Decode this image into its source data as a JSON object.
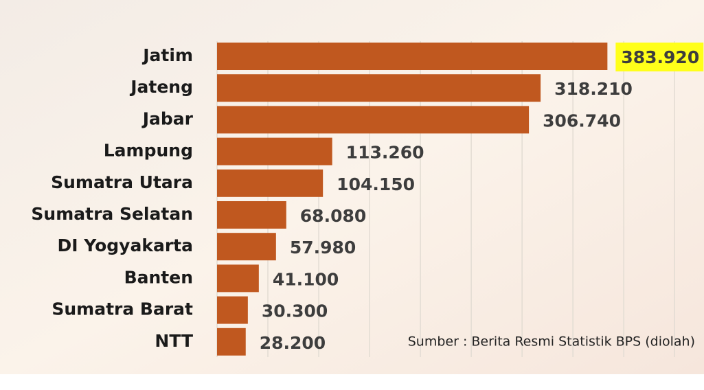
{
  "chart_data": {
    "type": "bar",
    "orientation": "horizontal",
    "categories": [
      "Jatim",
      "Jateng",
      "Jabar",
      "Lampung",
      "Sumatra Utara",
      "Sumatra Selatan",
      "DI Yogyakarta",
      "Banten",
      "Sumatra Barat",
      "NTT"
    ],
    "values": [
      383920,
      318210,
      306740,
      113260,
      104150,
      68080,
      57980,
      41100,
      30300,
      28200
    ],
    "value_labels": [
      "383.920",
      "318.210",
      "306.740",
      "113.260",
      "104.150",
      "68.080",
      "57.980",
      "41.100",
      "30.300",
      "28.200"
    ],
    "color": "#c0581f",
    "xlim": [
      0,
      460000
    ],
    "xticks": [
      0,
      50000,
      100000,
      150000,
      200000,
      250000,
      300000,
      350000,
      400000,
      450000
    ],
    "grid": true,
    "note": "Sumber : Berita Resmi Statistik BPS (diolah)"
  }
}
